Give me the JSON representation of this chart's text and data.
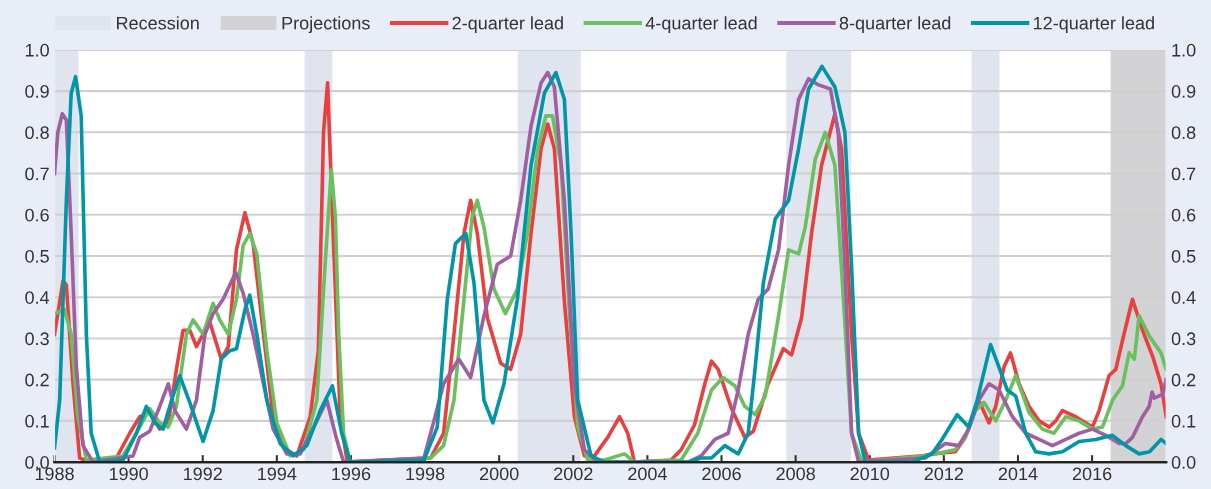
{
  "chart_data": {
    "type": "line",
    "xlim": [
      1988,
      2018
    ],
    "xticks": [
      1988,
      1990,
      1992,
      1994,
      1996,
      1998,
      2000,
      2002,
      2004,
      2006,
      2008,
      2010,
      2012,
      2014,
      2016
    ],
    "ylim": [
      0,
      1
    ],
    "yticks": [
      {
        "value": 0,
        "label": "0.0"
      },
      {
        "value": 0.1,
        "label": "0.1"
      },
      {
        "value": 0.2,
        "label": "0.2"
      },
      {
        "value": 0.3,
        "label": "0.3"
      },
      {
        "value": 0.4,
        "label": "0.4"
      },
      {
        "value": 0.5,
        "label": "0.5"
      },
      {
        "value": 0.6,
        "label": "0.6"
      },
      {
        "value": 0.7,
        "label": "0.7"
      },
      {
        "value": 0.8,
        "label": "0.8"
      },
      {
        "value": 0.9,
        "label": "0.9"
      },
      {
        "value": 1,
        "label": "1.0"
      }
    ],
    "y2lim": [
      0,
      1
    ],
    "y2ticks": [
      {
        "value": 0,
        "label": "0.0"
      },
      {
        "value": 0.1,
        "label": "0.1"
      },
      {
        "value": 0.2,
        "label": "0.2"
      },
      {
        "value": 0.3,
        "label": "0.3"
      },
      {
        "value": 0.4,
        "label": "0.4"
      },
      {
        "value": 0.5,
        "label": "0.5"
      },
      {
        "value": 0.6,
        "label": "0.6"
      },
      {
        "value": 0.7,
        "label": "0.7"
      },
      {
        "value": 0.8,
        "label": "0.8"
      },
      {
        "value": 0.9,
        "label": "0.9"
      },
      {
        "value": 1,
        "label": "1.0"
      }
    ],
    "grid": "y",
    "legend": "top",
    "line_style": "solid",
    "marker": "none",
    "bands": [
      {
        "axis": "x",
        "from": 1988.0,
        "to": 1988.65,
        "label": "Recession",
        "color": "#dfe4ee"
      },
      {
        "axis": "x",
        "from": 1994.75,
        "to": 1995.5,
        "color": "#dfe4ee"
      },
      {
        "axis": "x",
        "from": 2000.5,
        "to": 2002.2,
        "color": "#dfe4ee"
      },
      {
        "axis": "x",
        "from": 2007.75,
        "to": 2009.5,
        "color": "#dfe4ee"
      },
      {
        "axis": "x",
        "from": 2012.75,
        "to": 2013.5,
        "color": "#dfe4ee"
      },
      {
        "axis": "x",
        "from": 2016.5,
        "to": 2018.0,
        "label": "Projections",
        "color": "#d3d3d5"
      }
    ],
    "series": [
      {
        "name": "2-quarter lead",
        "color": "#e8403f",
        "x": [
          1988.0,
          1988.23,
          1988.32,
          1988.5,
          1988.68,
          1988.95,
          1989.67,
          1990.03,
          1990.3,
          1990.57,
          1990.84,
          1991.07,
          1991.3,
          1991.47,
          1991.65,
          1991.83,
          1992.19,
          1992.5,
          1992.69,
          1992.91,
          1993.14,
          1993.36,
          1993.64,
          1993.9,
          1994.27,
          1994.54,
          1994.9,
          1995.12,
          1995.26,
          1995.37,
          1995.5,
          1995.71,
          1995.9,
          1998.15,
          1998.5,
          1998.78,
          1999.05,
          1999.23,
          1999.41,
          1999.68,
          2000.04,
          2000.31,
          2000.58,
          2000.86,
          2001.13,
          2001.31,
          2001.49,
          2001.76,
          2002.03,
          2002.3,
          2002.57,
          2002.93,
          2003.25,
          2003.47,
          2003.65,
          2004.64,
          2004.91,
          2005.27,
          2005.55,
          2005.73,
          2005.91,
          2006.27,
          2006.63,
          2006.86,
          2007.26,
          2007.67,
          2007.89,
          2008.16,
          2008.43,
          2008.7,
          2009.06,
          2009.24,
          2009.51,
          2009.7,
          2009.97,
          2011.41,
          2011.68,
          2012.31,
          2012.58,
          2012.94,
          2013.22,
          2013.4,
          2013.62,
          2013.8,
          2014.03,
          2014.3,
          2014.57,
          2014.84,
          2015.02,
          2015.2,
          2015.56,
          2016.01,
          2016.19,
          2016.46,
          2016.64,
          2016.82,
          2017.09,
          2017.36,
          2017.64,
          2017.86,
          2018.0
        ],
        "values": [
          0.31,
          0.44,
          0.43,
          0.19,
          0.01,
          0.0,
          0.01,
          0.07,
          0.11,
          0.12,
          0.08,
          0.095,
          0.23,
          0.32,
          0.32,
          0.28,
          0.34,
          0.25,
          0.28,
          0.515,
          0.605,
          0.53,
          0.31,
          0.11,
          0.03,
          0.015,
          0.11,
          0.27,
          0.8,
          0.92,
          0.6,
          0.11,
          0.0,
          0.01,
          0.07,
          0.31,
          0.555,
          0.635,
          0.555,
          0.35,
          0.24,
          0.225,
          0.31,
          0.555,
          0.76,
          0.82,
          0.76,
          0.39,
          0.11,
          0.015,
          0.015,
          0.06,
          0.11,
          0.07,
          0.0,
          0.005,
          0.03,
          0.09,
          0.19,
          0.245,
          0.225,
          0.13,
          0.06,
          0.075,
          0.19,
          0.275,
          0.26,
          0.35,
          0.555,
          0.72,
          0.845,
          0.76,
          0.31,
          0.07,
          0.005,
          0.015,
          0.02,
          0.025,
          0.06,
          0.15,
          0.095,
          0.135,
          0.23,
          0.265,
          0.19,
          0.135,
          0.1,
          0.085,
          0.1,
          0.125,
          0.11,
          0.085,
          0.125,
          0.21,
          0.225,
          0.295,
          0.395,
          0.32,
          0.255,
          0.19,
          0.11
        ]
      },
      {
        "name": "4-quarter lead",
        "color": "#6abf5e",
        "x": [
          1988.0,
          1988.27,
          1988.45,
          1988.63,
          1988.86,
          1989.85,
          1990.21,
          1990.57,
          1990.84,
          1991.07,
          1991.29,
          1991.56,
          1991.74,
          1992.01,
          1992.28,
          1992.46,
          1992.69,
          1992.91,
          1993.09,
          1993.27,
          1993.46,
          1993.73,
          1994.0,
          1994.36,
          1994.72,
          1995.08,
          1995.3,
          1995.47,
          1995.58,
          1995.67,
          1995.8,
          1995.98,
          1998.15,
          1998.5,
          1998.78,
          1999.05,
          1999.27,
          1999.41,
          1999.59,
          1999.86,
          2000.17,
          2000.49,
          2000.76,
          2001.04,
          2001.26,
          2001.44,
          2001.67,
          2001.9,
          2002.12,
          2002.39,
          2002.84,
          2003.38,
          2003.65,
          2004.91,
          2005.36,
          2005.73,
          2006.04,
          2006.36,
          2006.63,
          2006.91,
          2007.18,
          2007.54,
          2007.81,
          2008.08,
          2008.26,
          2008.53,
          2008.8,
          2009.06,
          2009.29,
          2009.51,
          2009.79,
          2011.41,
          2011.77,
          2012.31,
          2012.58,
          2012.85,
          2013.08,
          2013.4,
          2013.67,
          2013.94,
          2014.3,
          2014.66,
          2014.97,
          2015.29,
          2015.65,
          2016.01,
          2016.28,
          2016.55,
          2016.82,
          2017.0,
          2017.14,
          2017.27,
          2017.55,
          2017.86,
          2018.0
        ],
        "values": [
          0.36,
          0.37,
          0.31,
          0.11,
          0.005,
          0.015,
          0.07,
          0.13,
          0.095,
          0.085,
          0.135,
          0.31,
          0.345,
          0.31,
          0.385,
          0.345,
          0.31,
          0.395,
          0.525,
          0.555,
          0.505,
          0.27,
          0.095,
          0.015,
          0.03,
          0.15,
          0.475,
          0.71,
          0.595,
          0.31,
          0.07,
          0.0,
          0.01,
          0.04,
          0.15,
          0.395,
          0.595,
          0.635,
          0.57,
          0.42,
          0.36,
          0.42,
          0.555,
          0.76,
          0.84,
          0.84,
          0.72,
          0.355,
          0.085,
          0.005,
          0.005,
          0.02,
          0.0,
          0.005,
          0.07,
          0.175,
          0.205,
          0.185,
          0.135,
          0.115,
          0.16,
          0.355,
          0.515,
          0.505,
          0.57,
          0.735,
          0.8,
          0.72,
          0.395,
          0.07,
          0.0,
          0.015,
          0.02,
          0.03,
          0.06,
          0.125,
          0.145,
          0.1,
          0.15,
          0.21,
          0.12,
          0.08,
          0.07,
          0.11,
          0.1,
          0.08,
          0.085,
          0.15,
          0.185,
          0.265,
          0.25,
          0.355,
          0.305,
          0.265,
          0.225
        ]
      },
      {
        "name": "8-quarter lead",
        "color": "#a05fa0",
        "x": [
          1988.0,
          1988.09,
          1988.21,
          1988.32,
          1988.45,
          1988.59,
          1988.77,
          1989.04,
          1990.12,
          1990.3,
          1990.57,
          1990.84,
          1991.07,
          1991.25,
          1991.56,
          1991.83,
          1992.06,
          1992.28,
          1992.55,
          1992.89,
          1993.09,
          1993.36,
          1993.64,
          1993.9,
          1994.27,
          1994.63,
          1995.08,
          1995.35,
          1995.6,
          1995.8,
          1997.97,
          1998.24,
          1998.5,
          1998.91,
          1999.23,
          1999.59,
          1999.95,
          2000.31,
          2000.58,
          2000.86,
          2001.13,
          2001.31,
          2001.49,
          2001.76,
          2002.03,
          2002.3,
          2002.66,
          2005.09,
          2005.45,
          2005.82,
          2006.18,
          2006.45,
          2006.72,
          2006.99,
          2007.26,
          2007.54,
          2007.81,
          2008.08,
          2008.35,
          2008.62,
          2008.94,
          2009.15,
          2009.33,
          2009.51,
          2009.7,
          2011.5,
          2012.04,
          2012.4,
          2012.67,
          2012.94,
          2013.22,
          2013.49,
          2013.85,
          2014.21,
          2014.57,
          2014.93,
          2015.29,
          2015.65,
          2016.01,
          2016.37,
          2016.73,
          2016.91,
          2017.09,
          2017.36,
          2017.54,
          2017.62,
          2017.68,
          2017.91,
          2018.0
        ],
        "values": [
          0.7,
          0.8,
          0.845,
          0.83,
          0.555,
          0.23,
          0.04,
          0.0,
          0.015,
          0.06,
          0.075,
          0.135,
          0.19,
          0.125,
          0.08,
          0.15,
          0.31,
          0.36,
          0.395,
          0.46,
          0.41,
          0.31,
          0.19,
          0.08,
          0.02,
          0.02,
          0.1,
          0.15,
          0.06,
          0.0,
          0.01,
          0.1,
          0.19,
          0.25,
          0.205,
          0.355,
          0.48,
          0.5,
          0.635,
          0.815,
          0.92,
          0.945,
          0.91,
          0.635,
          0.19,
          0.03,
          0.0,
          0.0,
          0.015,
          0.055,
          0.07,
          0.175,
          0.31,
          0.395,
          0.42,
          0.515,
          0.72,
          0.88,
          0.93,
          0.915,
          0.905,
          0.8,
          0.475,
          0.07,
          0.0,
          0.01,
          0.045,
          0.04,
          0.08,
          0.15,
          0.19,
          0.175,
          0.11,
          0.07,
          0.055,
          0.04,
          0.055,
          0.07,
          0.08,
          0.065,
          0.045,
          0.045,
          0.06,
          0.11,
          0.135,
          0.17,
          0.155,
          0.165,
          0.2
        ]
      },
      {
        "name": "12-quarter lead",
        "color": "#0096a8",
        "x": [
          1988.0,
          1988.14,
          1988.32,
          1988.45,
          1988.57,
          1988.72,
          1988.86,
          1988.99,
          1989.22,
          1989.85,
          1990.21,
          1990.48,
          1990.71,
          1990.93,
          1991.16,
          1991.38,
          1991.65,
          1992.01,
          1992.28,
          1992.5,
          1992.73,
          1992.91,
          1993.14,
          1993.27,
          1993.46,
          1993.73,
          1994.09,
          1994.45,
          1994.81,
          1995.17,
          1995.5,
          1995.75,
          1995.98,
          1997.97,
          1998.33,
          1998.6,
          1998.82,
          1999.1,
          1999.32,
          1999.59,
          1999.83,
          2000.13,
          2000.49,
          2000.86,
          2001.22,
          2001.53,
          2001.76,
          2001.94,
          2002.12,
          2002.48,
          2002.84,
          2005.09,
          2005.45,
          2005.73,
          2006.09,
          2006.45,
          2006.72,
          2006.91,
          2007.13,
          2007.45,
          2007.81,
          2008.08,
          2008.35,
          2008.71,
          2009.06,
          2009.33,
          2009.51,
          2009.7,
          2009.88,
          2011.14,
          2011.68,
          2011.95,
          2012.36,
          2012.67,
          2012.9,
          2013.26,
          2013.49,
          2013.71,
          2013.94,
          2014.21,
          2014.48,
          2014.84,
          2015.2,
          2015.65,
          2016.1,
          2016.55,
          2016.91,
          2017.27,
          2017.55,
          2017.86,
          2018.0
        ],
        "values": [
          0.035,
          0.15,
          0.635,
          0.895,
          0.935,
          0.84,
          0.31,
          0.07,
          0.0,
          0.005,
          0.07,
          0.135,
          0.095,
          0.08,
          0.15,
          0.21,
          0.145,
          0.05,
          0.125,
          0.25,
          0.27,
          0.275,
          0.37,
          0.405,
          0.31,
          0.15,
          0.045,
          0.015,
          0.04,
          0.125,
          0.185,
          0.07,
          0.0,
          0.005,
          0.085,
          0.395,
          0.53,
          0.555,
          0.435,
          0.15,
          0.095,
          0.19,
          0.395,
          0.72,
          0.895,
          0.945,
          0.88,
          0.555,
          0.15,
          0.015,
          0.0,
          0.0,
          0.01,
          0.01,
          0.04,
          0.02,
          0.07,
          0.23,
          0.435,
          0.59,
          0.635,
          0.76,
          0.905,
          0.96,
          0.91,
          0.8,
          0.475,
          0.07,
          0.0,
          0.0,
          0.02,
          0.055,
          0.115,
          0.085,
          0.15,
          0.285,
          0.23,
          0.175,
          0.16,
          0.07,
          0.025,
          0.02,
          0.025,
          0.05,
          0.055,
          0.065,
          0.04,
          0.02,
          0.025,
          0.055,
          0.045
        ]
      }
    ]
  }
}
